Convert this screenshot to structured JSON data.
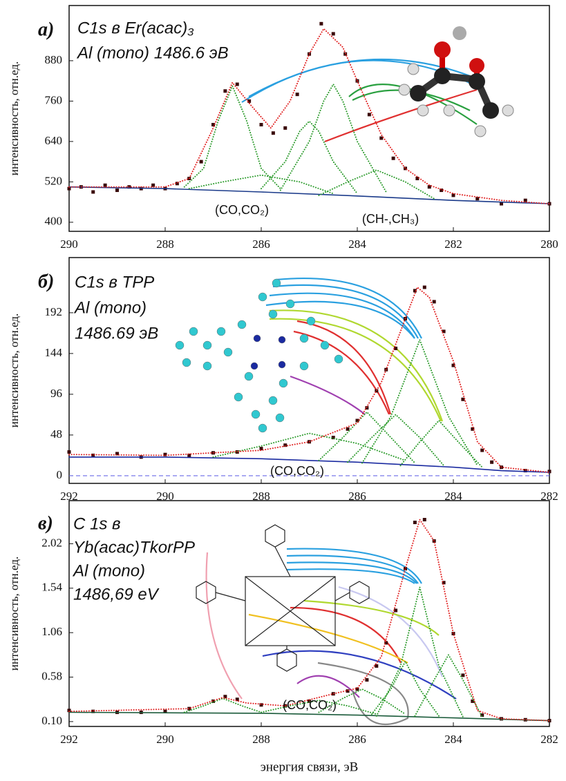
{
  "chart_data": [
    {
      "type": "line",
      "panel_label": "а)",
      "title_lines": [
        "C1s в Er(acac)₃",
        "Al (mono) 1486.6 эВ"
      ],
      "ylabel": "интенсивность, отн.ед.",
      "annotations": [
        "(CO,CO₂)",
        "(CH-,CH₃)"
      ],
      "xlim": [
        290,
        280
      ],
      "xticks": [
        290,
        288,
        286,
        284,
        282,
        280
      ],
      "ylim": [
        373,
        1044
      ],
      "yticks": [
        400,
        520,
        640,
        760,
        880
      ],
      "hlines": [],
      "series": [
        {
          "style": "markers",
          "color": "#3a0a0a",
          "x": [
            290,
            289.75,
            289.5,
            289.25,
            289,
            288.75,
            288.5,
            288.25,
            288,
            287.75,
            287.5,
            287.25,
            287,
            286.75,
            286.5,
            286.25,
            286,
            285.75,
            285.5,
            285.25,
            285,
            284.75,
            284.5,
            284.25,
            284,
            283.75,
            283.5,
            283.25,
            283,
            282.75,
            282.5,
            282.25,
            282,
            281.5,
            281,
            280.5,
            280
          ],
          "values": [
            500,
            505,
            490,
            510,
            495,
            505,
            500,
            510,
            500,
            515,
            530,
            580,
            690,
            790,
            810,
            760,
            690,
            665,
            680,
            780,
            900,
            990,
            960,
            900,
            820,
            720,
            650,
            590,
            560,
            530,
            505,
            495,
            480,
            470,
            455,
            465,
            455
          ]
        },
        {
          "style": "solid",
          "color": "#1a3a8a",
          "x": [
            290,
            288,
            286,
            284,
            282,
            280
          ],
          "values": [
            505,
            500,
            490,
            478,
            465,
            455
          ]
        },
        {
          "style": "dotted",
          "color": "#2a9a2a",
          "x": [
            287.6,
            287.2,
            286.9,
            286.6,
            286.3,
            286,
            285.6
          ],
          "values": [
            505,
            560,
            700,
            805,
            700,
            560,
            500
          ]
        },
        {
          "style": "dotted",
          "color": "#2a9a2a",
          "x": [
            287.5,
            286.8,
            286,
            285.2,
            284.5
          ],
          "values": [
            500,
            520,
            540,
            520,
            485
          ]
        },
        {
          "style": "dotted",
          "color": "#2a9a2a",
          "x": [
            286,
            285.5,
            285.2,
            285,
            284.8,
            284.5,
            284
          ],
          "values": [
            500,
            580,
            670,
            700,
            670,
            580,
            485
          ]
        },
        {
          "style": "dotted",
          "color": "#2a9a2a",
          "x": [
            285.6,
            285,
            284.7,
            284.5,
            284.3,
            284,
            283.4
          ],
          "values": [
            495,
            640,
            760,
            810,
            760,
            640,
            490
          ]
        },
        {
          "style": "dotted",
          "color": "#2a9a2a",
          "x": [
            284.8,
            284.2,
            283.6,
            283,
            282.4
          ],
          "values": [
            480,
            520,
            555,
            520,
            470
          ]
        },
        {
          "style": "dotted",
          "color": "#e02020",
          "x": [
            290,
            288,
            287.5,
            287,
            286.6,
            286.2,
            285.8,
            285.4,
            285,
            284.7,
            284.3,
            284,
            283.5,
            283,
            282.5,
            282,
            281,
            280
          ],
          "values": [
            505,
            505,
            530,
            680,
            815,
            745,
            680,
            760,
            900,
            975,
            920,
            820,
            660,
            560,
            510,
            485,
            465,
            455
          ]
        }
      ]
    },
    {
      "type": "line",
      "panel_label": "б)",
      "title_lines": [
        "C1s в TPP",
        "Al (mono)",
        "1486.69 эВ"
      ],
      "ylabel": "интенсивность, отн.ед.",
      "annotations": [
        "(CO,CO₂)"
      ],
      "xlim": [
        292,
        282
      ],
      "xticks": [
        292,
        290,
        288,
        286,
        284,
        282
      ],
      "ylim": [
        -9,
        257
      ],
      "yticks": [
        0,
        48,
        96,
        144,
        192
      ],
      "hlines": [
        0
      ],
      "series": [
        {
          "style": "markers",
          "color": "#3a0a0a",
          "x": [
            292,
            291.5,
            291,
            290.5,
            290,
            289.5,
            289,
            288.5,
            288,
            287.5,
            287,
            286.5,
            286.2,
            286,
            285.8,
            285.6,
            285.4,
            285.2,
            285,
            284.8,
            284.6,
            284.4,
            284.2,
            284,
            283.8,
            283.6,
            283.4,
            283.2,
            283,
            282.5,
            282
          ],
          "values": [
            28,
            24,
            26,
            22,
            25,
            24,
            27,
            28,
            32,
            36,
            40,
            45,
            55,
            65,
            80,
            100,
            125,
            150,
            185,
            218,
            222,
            205,
            170,
            130,
            90,
            55,
            30,
            16,
            10,
            6,
            5
          ]
        },
        {
          "style": "solid",
          "color": "#1a2aa0",
          "x": [
            292,
            290,
            288,
            286,
            284,
            283,
            282
          ],
          "values": [
            22,
            22,
            20,
            16,
            10,
            6,
            4
          ]
        },
        {
          "style": "dotted",
          "color": "#2a9a2a",
          "x": [
            289,
            288,
            287,
            286,
            285
          ],
          "values": [
            22,
            35,
            50,
            38,
            18
          ]
        },
        {
          "style": "dotted",
          "color": "#2a9a2a",
          "x": [
            286.8,
            286.3,
            285.8,
            285.3,
            284.8
          ],
          "values": [
            18,
            45,
            75,
            45,
            15
          ]
        },
        {
          "style": "dotted",
          "color": "#2a9a2a",
          "x": [
            286.2,
            285.7,
            285.2,
            284.7,
            284.2
          ],
          "values": [
            16,
            45,
            72,
            45,
            12
          ]
        },
        {
          "style": "dotted",
          "color": "#2a9a2a",
          "x": [
            285.9,
            285.3,
            284.7,
            284.1,
            283.5
          ],
          "values": [
            15,
            70,
            160,
            70,
            12
          ]
        },
        {
          "style": "dotted",
          "color": "#2a9a2a",
          "x": [
            285.1,
            284.7,
            284.3,
            283.9,
            283.4
          ],
          "values": [
            12,
            40,
            65,
            40,
            10
          ]
        },
        {
          "style": "dotted",
          "color": "#e02020",
          "x": [
            292,
            290,
            288,
            287,
            286,
            285.5,
            285,
            284.75,
            284.5,
            284,
            283.5,
            283,
            282
          ],
          "values": [
            25,
            24,
            30,
            40,
            62,
            110,
            185,
            222,
            210,
            135,
            40,
            10,
            4
          ]
        }
      ]
    },
    {
      "type": "line",
      "panel_label": "в)",
      "title_lines": [
        "C 1s в",
        "Yb(acac)TkorPP",
        "Al (mono)",
        "1486,69 eV"
      ],
      "ylabel": "интенсивность, отн.ед.",
      "xlabel": "энергия связи, эВ",
      "annotations": [
        "(CO,CO₂)"
      ],
      "xlim": [
        292,
        282
      ],
      "xticks": [
        292,
        290,
        288,
        286,
        284,
        282
      ],
      "ylim": [
        0.0475,
        2.485
      ],
      "yticks": [
        {
          "value": 0.1,
          "label": "0.10"
        },
        0.58,
        1.06,
        1.54,
        2.02
      ],
      "hlines": [],
      "series": [
        {
          "style": "markers",
          "color": "#3a0a0a",
          "x": [
            292,
            291.5,
            291,
            290.5,
            290,
            289.5,
            289,
            288.75,
            288.5,
            288,
            287.5,
            287,
            286.5,
            286.2,
            286,
            285.8,
            285.6,
            285.4,
            285.2,
            285,
            284.8,
            284.6,
            284.4,
            284.2,
            284,
            283.8,
            283.6,
            283.4,
            283,
            282.5,
            282
          ],
          "values": [
            0.22,
            0.21,
            0.2,
            0.2,
            0.21,
            0.24,
            0.32,
            0.37,
            0.34,
            0.28,
            0.27,
            0.32,
            0.4,
            0.43,
            0.45,
            0.55,
            0.7,
            0.95,
            1.3,
            1.75,
            2.25,
            2.28,
            2.05,
            1.6,
            1.05,
            0.6,
            0.32,
            0.17,
            0.13,
            0.12,
            0.11
          ]
        },
        {
          "style": "solid",
          "color": "#1a5a3a",
          "x": [
            292,
            288,
            286,
            284,
            282
          ],
          "values": [
            0.2,
            0.19,
            0.17,
            0.14,
            0.11
          ]
        },
        {
          "style": "dotted",
          "color": "#2a9a2a",
          "x": [
            289.6,
            289.2,
            288.8,
            288.4,
            288
          ],
          "values": [
            0.2,
            0.27,
            0.35,
            0.27,
            0.2
          ]
        },
        {
          "style": "dotted",
          "color": "#2a9a2a",
          "x": [
            288,
            287.4,
            286.8,
            286.2,
            285.6
          ],
          "values": [
            0.2,
            0.27,
            0.33,
            0.27,
            0.18
          ]
        },
        {
          "style": "dotted",
          "color": "#2a9a2a",
          "x": [
            286.8,
            286.3,
            285.9,
            285.5,
            285
          ],
          "values": [
            0.2,
            0.35,
            0.45,
            0.35,
            0.18
          ]
        },
        {
          "style": "dotted",
          "color": "#2a9a2a",
          "x": [
            285.7,
            285.3,
            285,
            284.7,
            284.3
          ],
          "values": [
            0.18,
            0.45,
            0.75,
            0.45,
            0.16
          ]
        },
        {
          "style": "dotted",
          "color": "#2a9a2a",
          "x": [
            285.6,
            285.1,
            284.7,
            284.3,
            283.8
          ],
          "values": [
            0.16,
            0.7,
            1.55,
            0.7,
            0.15
          ]
        },
        {
          "style": "dotted",
          "color": "#2a9a2a",
          "x": [
            284.8,
            284.4,
            284.1,
            283.8,
            283.4
          ],
          "values": [
            0.16,
            0.55,
            0.82,
            0.55,
            0.15
          ]
        },
        {
          "style": "dotted",
          "color": "#e02020",
          "x": [
            292,
            289.5,
            288.8,
            288.3,
            287.5,
            286.5,
            286,
            285.5,
            285,
            284.7,
            284.4,
            284,
            283.5,
            283,
            282
          ],
          "values": [
            0.21,
            0.24,
            0.36,
            0.3,
            0.27,
            0.4,
            0.46,
            0.8,
            1.75,
            2.28,
            2.05,
            1.05,
            0.22,
            0.13,
            0.11
          ]
        }
      ]
    }
  ]
}
